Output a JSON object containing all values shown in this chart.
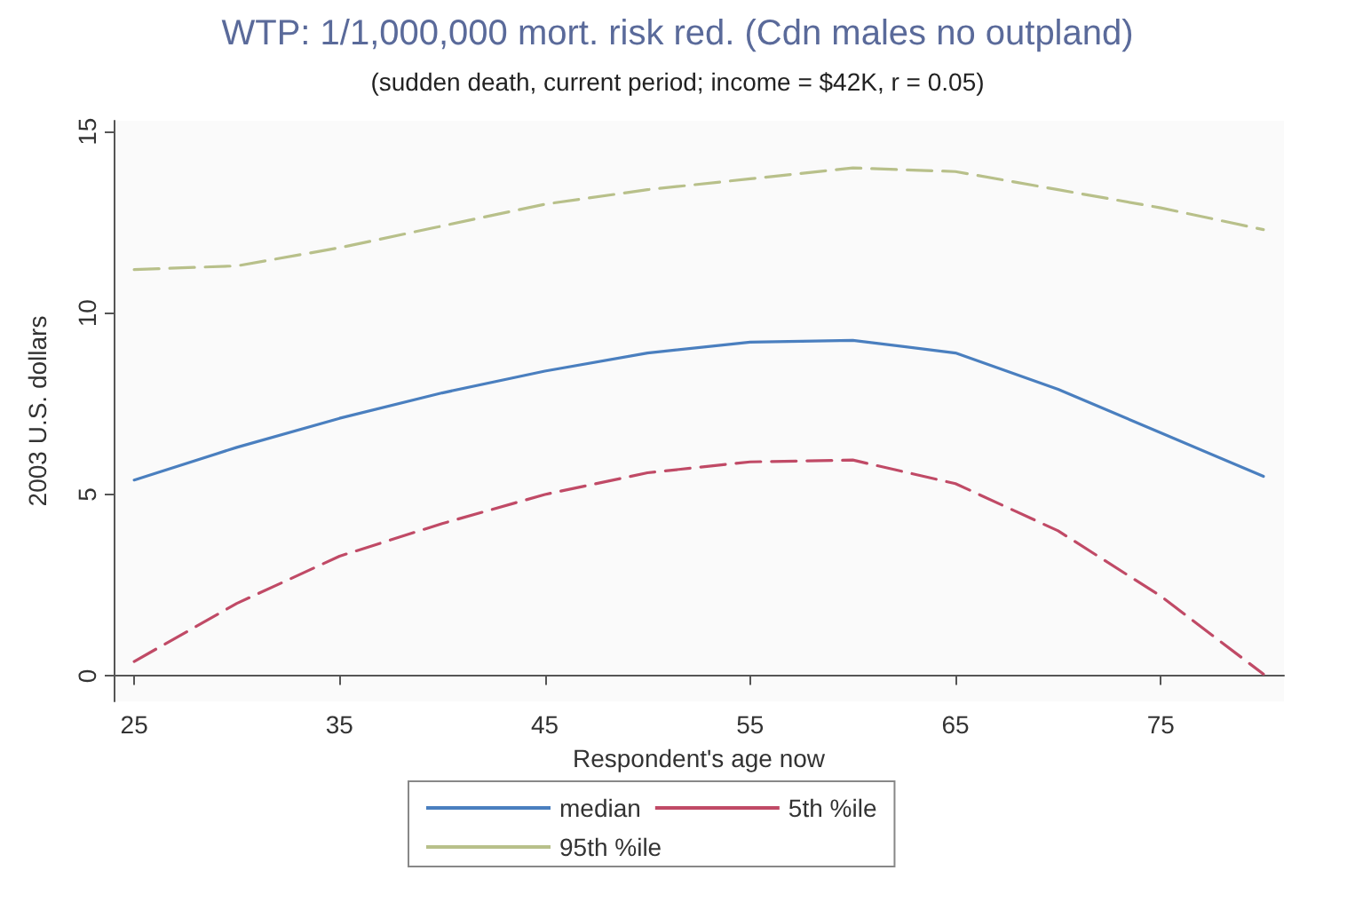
{
  "chart_data": {
    "type": "line",
    "title": "WTP: 1/1,000,000 mort. risk red. (Cdn males no outpland)",
    "subtitle": "(sudden death, current period; income = $42K, r = 0.05)",
    "xlabel": "Respondent's age now",
    "ylabel": "2003 U.S. dollars",
    "x": [
      25,
      30,
      35,
      40,
      45,
      50,
      55,
      60,
      65,
      70,
      75,
      80
    ],
    "series": [
      {
        "name": "median",
        "color": "#4a7fbf",
        "line_style": "solid",
        "values": [
          5.4,
          6.3,
          7.1,
          7.8,
          8.4,
          8.9,
          9.2,
          9.25,
          8.9,
          7.9,
          6.7,
          5.5
        ]
      },
      {
        "name": "5th %ile",
        "color": "#c04a66",
        "line_style": "dashed",
        "values": [
          0.4,
          2.0,
          3.3,
          4.2,
          5.0,
          5.6,
          5.9,
          5.95,
          5.3,
          4.0,
          2.2,
          0.05
        ]
      },
      {
        "name": "95th %ile",
        "color": "#b8c08a",
        "line_style": "dashed",
        "values": [
          11.2,
          11.3,
          11.8,
          12.4,
          13.0,
          13.4,
          13.7,
          14.0,
          13.9,
          13.4,
          12.9,
          12.3
        ]
      }
    ],
    "xlim": [
      24,
      81
    ],
    "xticks": [
      25,
      35,
      45,
      55,
      65,
      75
    ],
    "ylim": [
      -0.7,
      15.3
    ],
    "yticks": [
      0,
      5,
      10,
      15
    ],
    "grid": false,
    "legend": "bottom",
    "marker": "none"
  }
}
